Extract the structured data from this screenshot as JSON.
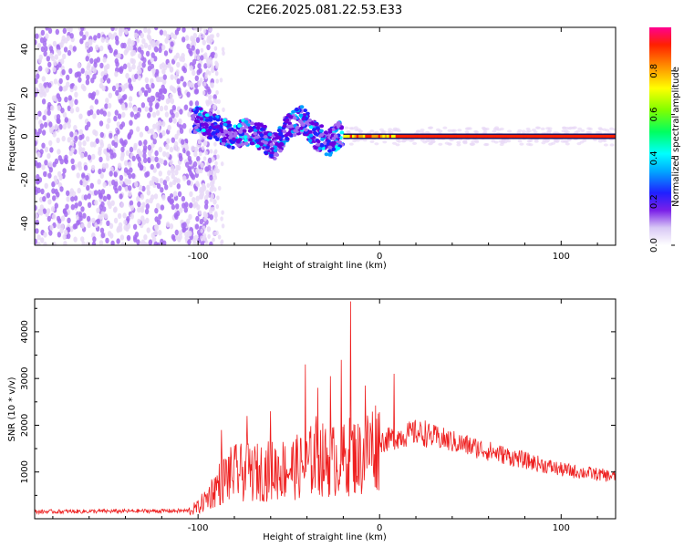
{
  "chart_data": [
    {
      "type": "heatmap",
      "title": "C2E6.2025.081.22.53.E33",
      "xlabel": "Height of straight line (km)",
      "ylabel": "Frequency (Hz)",
      "xlim": [
        -190,
        130
      ],
      "ylim": [
        -50,
        50
      ],
      "xticks": [
        -100,
        0,
        100
      ],
      "yticks": [
        -40,
        -20,
        0,
        20,
        40
      ],
      "colorbar": {
        "label": "Normalized spectral amplitude",
        "range": [
          0.0,
          1.0
        ],
        "ticks": [
          "0.0",
          "0.2",
          "0.4",
          "0.6",
          "0.8"
        ],
        "colormap": [
          "#ffffff",
          "#e8d9f7",
          "#a46cf0",
          "#6a00e0",
          "#2020ff",
          "#00a0ff",
          "#00ffff",
          "#00ff60",
          "#60ff00",
          "#ffff00",
          "#ffa000",
          "#ff2000",
          "#ff0080"
        ]
      },
      "regions": [
        {
          "name": "noise",
          "x": [
            -190,
            -90
          ],
          "y_range": [
            -50,
            50
          ],
          "amplitude": 0.1
        },
        {
          "name": "onset",
          "x": [
            -103,
            -20
          ],
          "center_hz": [
            8,
            6,
            3,
            0,
            2,
            0,
            -5,
            5,
            8,
            0,
            -3,
            2
          ],
          "amplitude": 0.35
        },
        {
          "name": "line",
          "x": [
            -20,
            130
          ],
          "center_hz": 0,
          "amplitude": 0.9
        }
      ]
    },
    {
      "type": "line",
      "xlabel": "Height of straight line (km)",
      "ylabel": "SNR (10 * v/v)",
      "xlim": [
        -190,
        130
      ],
      "ylim": [
        0,
        4700
      ],
      "xticks": [
        -100,
        0,
        100
      ],
      "yticks": [
        1000,
        2000,
        3000,
        4000
      ],
      "series_color": "#ee2020",
      "envelope": {
        "x": [
          -190,
          -150,
          -105,
          -100,
          -95,
          -90,
          -85,
          -80,
          -70,
          -60,
          -50,
          -40,
          -35,
          -30,
          -20,
          -15,
          -10,
          -5,
          0,
          5,
          10,
          15,
          20,
          25,
          30,
          40,
          50,
          60,
          70,
          80,
          90,
          100,
          110,
          120,
          130
        ],
        "y": [
          150,
          160,
          170,
          250,
          450,
          700,
          900,
          1000,
          1000,
          1050,
          1100,
          1150,
          1400,
          1250,
          1300,
          1400,
          1300,
          1600,
          1650,
          1700,
          1750,
          1800,
          1850,
          1800,
          1750,
          1650,
          1550,
          1450,
          1350,
          1250,
          1150,
          1050,
          1000,
          950,
          900
        ]
      },
      "peaks": [
        {
          "x": -87,
          "y": 1900
        },
        {
          "x": -73,
          "y": 2200
        },
        {
          "x": -60,
          "y": 2300
        },
        {
          "x": -41,
          "y": 3300
        },
        {
          "x": -34,
          "y": 2800
        },
        {
          "x": -27,
          "y": 3050
        },
        {
          "x": -21,
          "y": 3400
        },
        {
          "x": -16,
          "y": 4650
        },
        {
          "x": -8,
          "y": 2850
        },
        {
          "x": 8,
          "y": 3100
        },
        {
          "x": 25,
          "y": 2100
        }
      ]
    }
  ]
}
